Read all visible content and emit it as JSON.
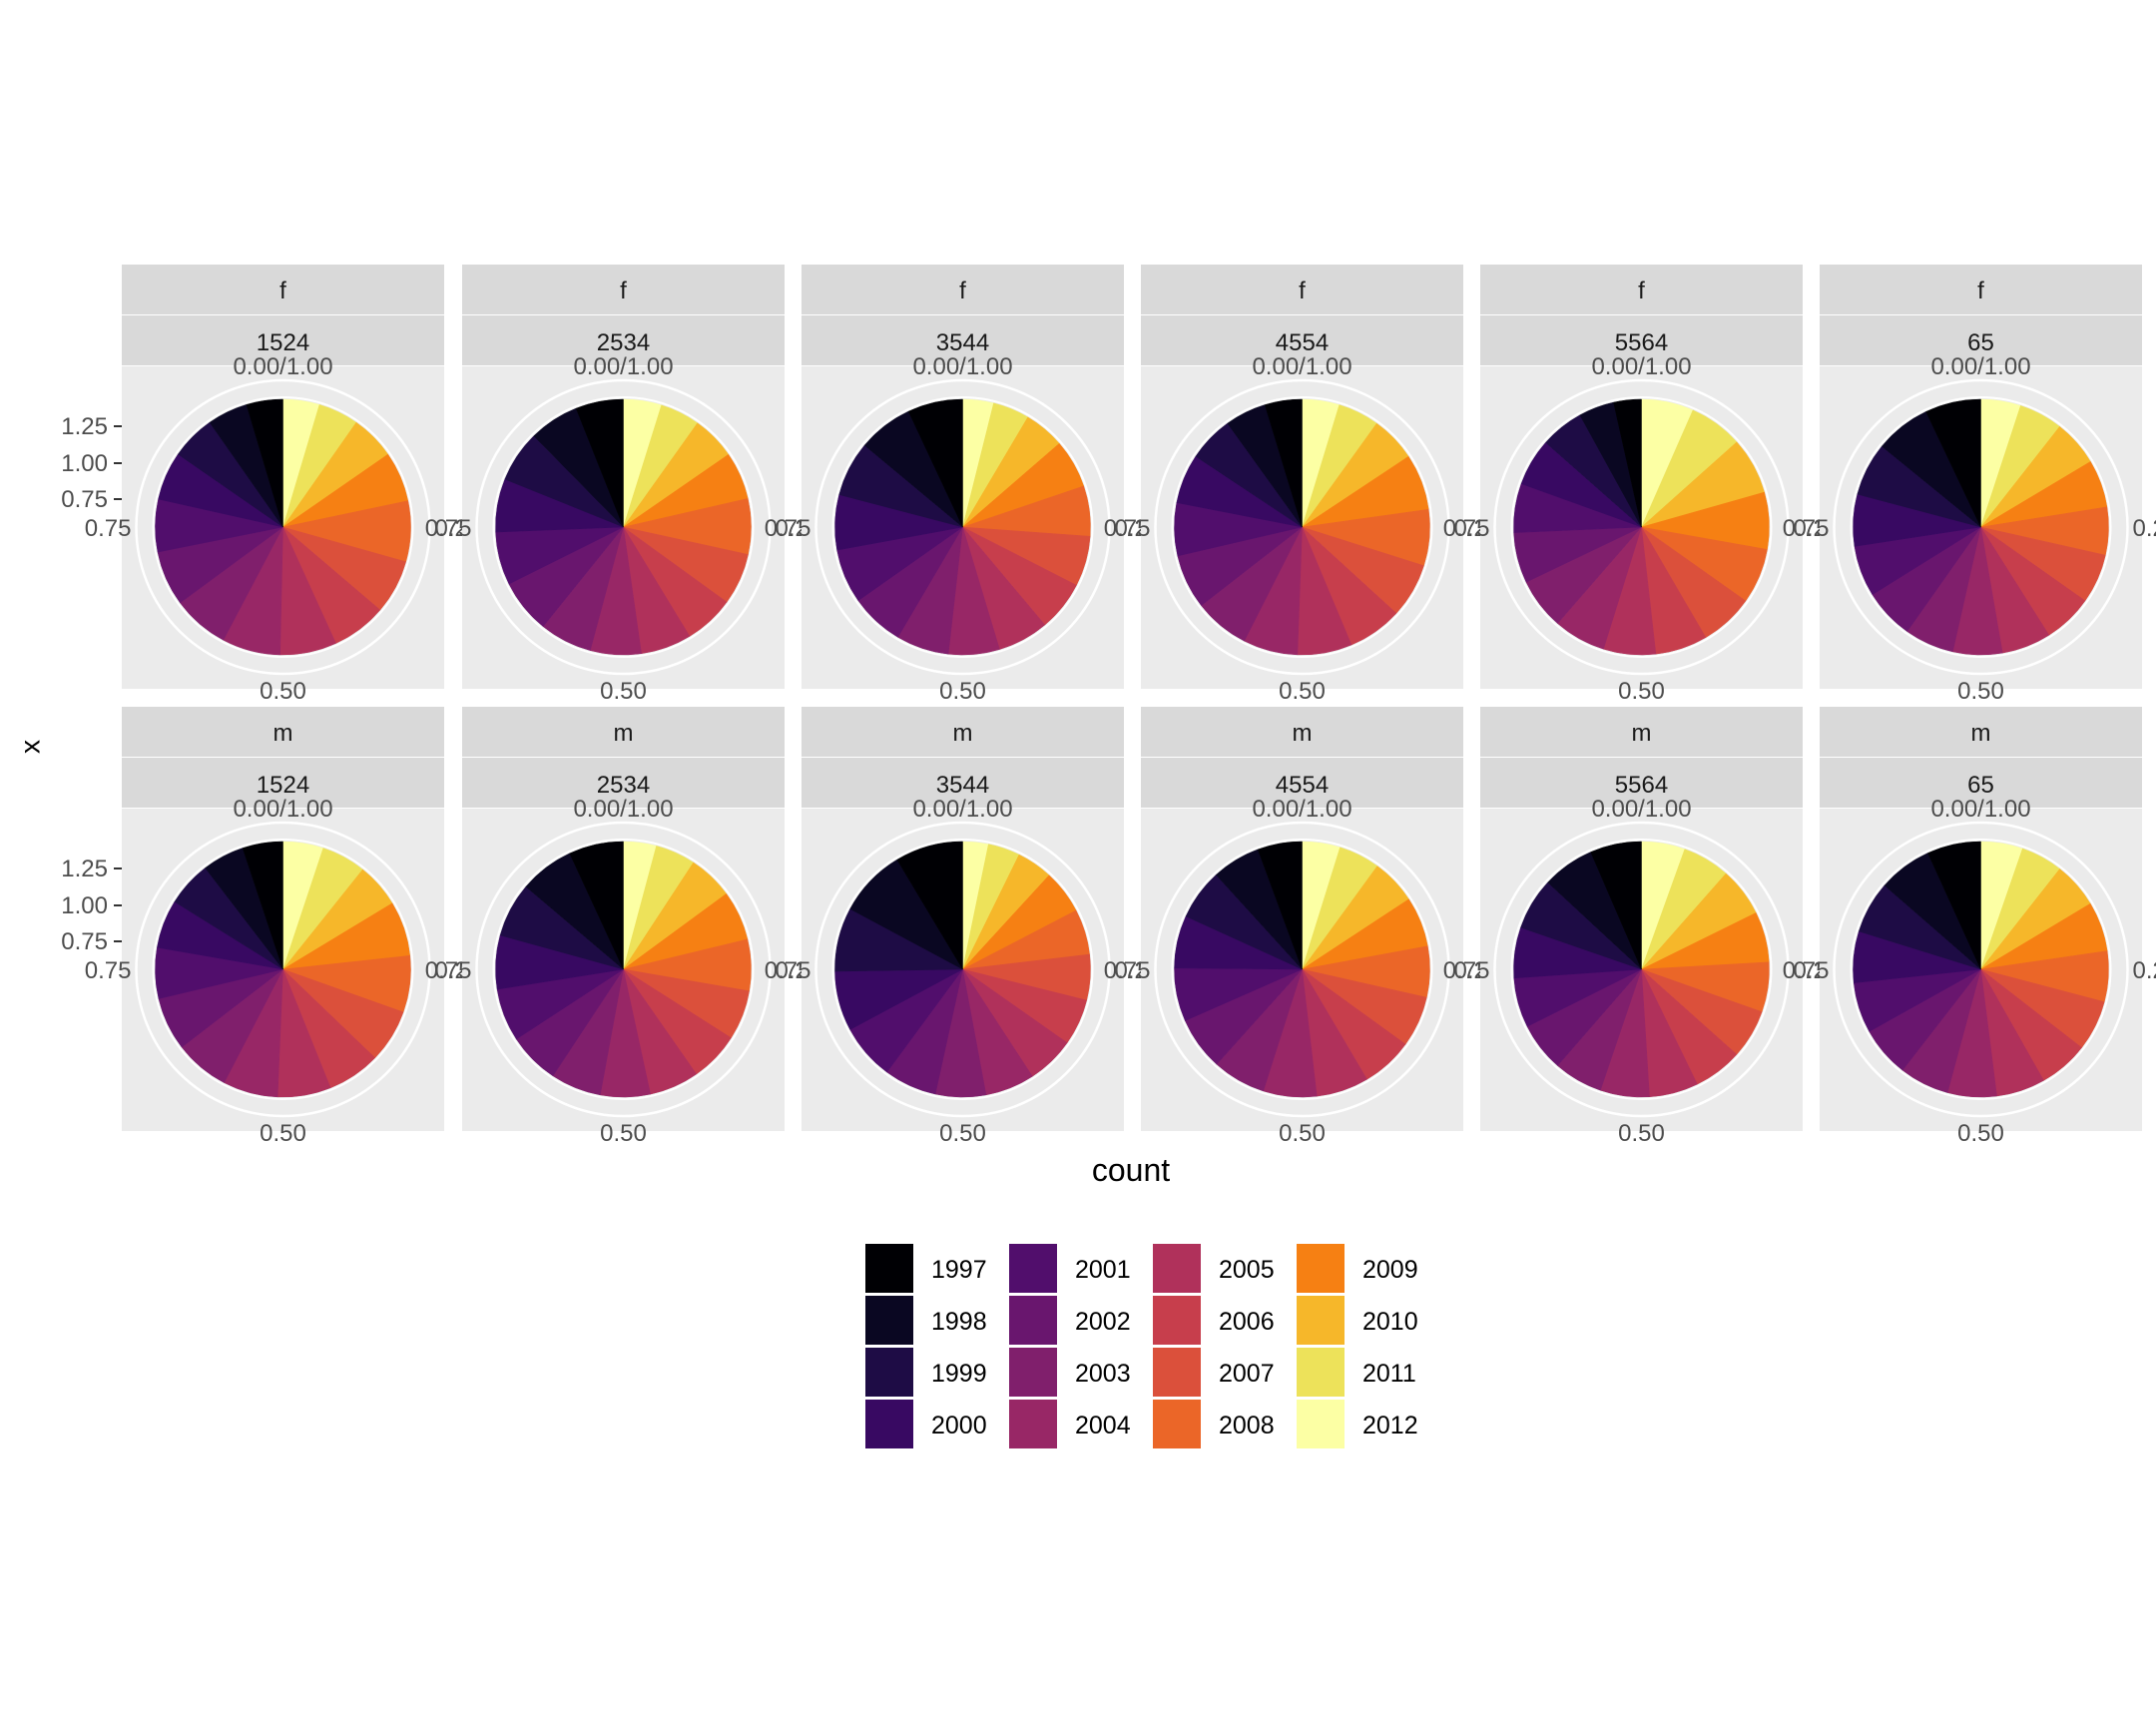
{
  "chart_data": {
    "type": "pie",
    "ylabel": "x",
    "xlabel": "count",
    "radial_ticks": [
      "0.75",
      "1.00",
      "1.25"
    ],
    "angle_ticks": [
      {
        "value": 0,
        "label": "0.00/1.00"
      },
      {
        "value": 0.25,
        "label": "0.25"
      },
      {
        "value": 0.5,
        "label": "0.50"
      },
      {
        "value": 0.75,
        "label": "0.75"
      }
    ],
    "legend": {
      "position": "bottom",
      "ncol": 4,
      "items": [
        {
          "label": "1997",
          "color": "#000004"
        },
        {
          "label": "1998",
          "color": "#0A0722"
        },
        {
          "label": "1999",
          "color": "#1E0C45"
        },
        {
          "label": "2000",
          "color": "#380962"
        },
        {
          "label": "2001",
          "color": "#510E6C"
        },
        {
          "label": "2002",
          "color": "#69166E"
        },
        {
          "label": "2003",
          "color": "#801F6C"
        },
        {
          "label": "2004",
          "color": "#982766"
        },
        {
          "label": "2005",
          "color": "#B0315B"
        },
        {
          "label": "2006",
          "color": "#C73E4C"
        },
        {
          "label": "2007",
          "color": "#DB503B"
        },
        {
          "label": "2008",
          "color": "#EB6628"
        },
        {
          "label": "2009",
          "color": "#F68013"
        },
        {
          "label": "2010",
          "color": "#F6B72A"
        },
        {
          "label": "2011",
          "color": "#EDE25A"
        },
        {
          "label": "2012",
          "color": "#FCFFA4"
        }
      ]
    },
    "panels": [
      {
        "sex": "f",
        "age": "1524",
        "values": [
          0.045,
          0.05,
          0.055,
          0.06,
          0.065,
          0.068,
          0.07,
          0.072,
          0.07,
          0.068,
          0.067,
          0.075,
          0.062,
          0.055,
          0.05,
          0.045
        ]
      },
      {
        "sex": "f",
        "age": "2534",
        "values": [
          0.06,
          0.063,
          0.065,
          0.067,
          0.067,
          0.068,
          0.066,
          0.064,
          0.064,
          0.063,
          0.065,
          0.07,
          0.06,
          0.055,
          0.05,
          0.048
        ]
      },
      {
        "sex": "f",
        "age": "3544",
        "values": [
          0.068,
          0.068,
          0.068,
          0.068,
          0.067,
          0.066,
          0.065,
          0.063,
          0.063,
          0.062,
          0.062,
          0.062,
          0.06,
          0.05,
          0.045,
          0.038
        ]
      },
      {
        "sex": "f",
        "age": "4554",
        "values": [
          0.045,
          0.05,
          0.055,
          0.06,
          0.064,
          0.066,
          0.067,
          0.066,
          0.066,
          0.066,
          0.066,
          0.068,
          0.068,
          0.055,
          0.05,
          0.045
        ]
      },
      {
        "sex": "f",
        "age": "5564",
        "values": [
          0.035,
          0.045,
          0.055,
          0.06,
          0.062,
          0.064,
          0.065,
          0.066,
          0.066,
          0.066,
          0.068,
          0.07,
          0.072,
          0.072,
          0.068,
          0.066
        ]
      },
      {
        "sex": "f",
        "age": "65",
        "values": [
          0.07,
          0.07,
          0.067,
          0.065,
          0.064,
          0.063,
          0.062,
          0.062,
          0.062,
          0.062,
          0.062,
          0.06,
          0.06,
          0.058,
          0.055,
          0.05
        ]
      },
      {
        "sex": "m",
        "age": "1524",
        "values": [
          0.05,
          0.052,
          0.056,
          0.06,
          0.063,
          0.066,
          0.068,
          0.068,
          0.066,
          0.066,
          0.066,
          0.07,
          0.068,
          0.055,
          0.055,
          0.05
        ]
      },
      {
        "sex": "m",
        "age": "2534",
        "values": [
          0.068,
          0.068,
          0.068,
          0.067,
          0.066,
          0.064,
          0.063,
          0.062,
          0.062,
          0.062,
          0.062,
          0.064,
          0.062,
          0.056,
          0.05,
          0.041
        ]
      },
      {
        "sex": "m",
        "age": "3544",
        "values": [
          0.085,
          0.085,
          0.08,
          0.075,
          0.07,
          0.066,
          0.063,
          0.062,
          0.06,
          0.058,
          0.057,
          0.057,
          0.055,
          0.045,
          0.04,
          0.032
        ]
      },
      {
        "sex": "m",
        "age": "4554",
        "values": [
          0.055,
          0.06,
          0.063,
          0.065,
          0.066,
          0.066,
          0.066,
          0.066,
          0.065,
          0.064,
          0.063,
          0.063,
          0.062,
          0.056,
          0.051,
          0.047
        ]
      },
      {
        "sex": "m",
        "age": "5564",
        "values": [
          0.065,
          0.066,
          0.066,
          0.064,
          0.063,
          0.062,
          0.062,
          0.062,
          0.062,
          0.062,
          0.062,
          0.063,
          0.064,
          0.062,
          0.06,
          0.055
        ]
      },
      {
        "sex": "m",
        "age": "65",
        "values": [
          0.068,
          0.068,
          0.066,
          0.065,
          0.064,
          0.064,
          0.063,
          0.062,
          0.062,
          0.063,
          0.064,
          0.064,
          0.063,
          0.058,
          0.053,
          0.053
        ]
      }
    ]
  }
}
